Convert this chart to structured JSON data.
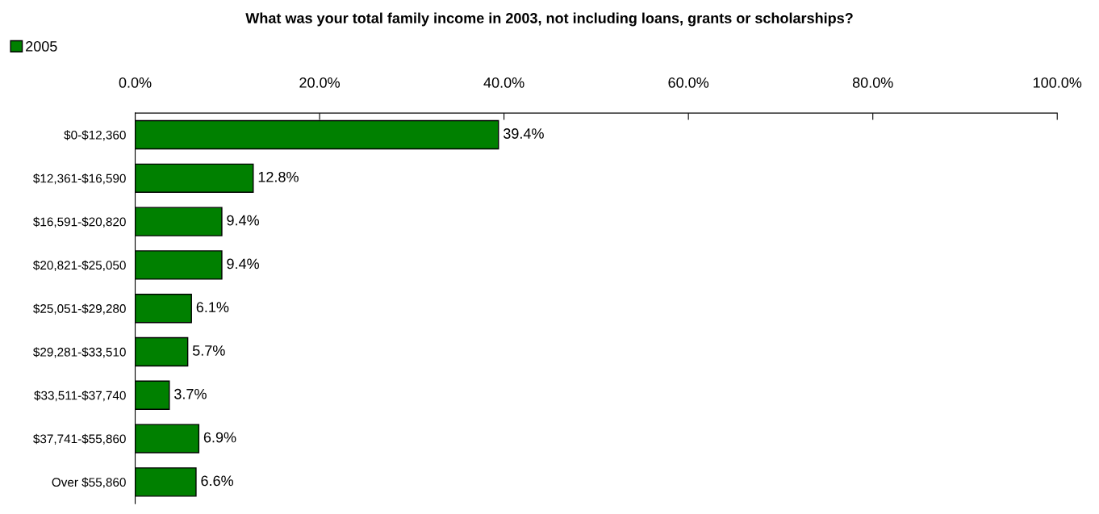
{
  "chart_data": {
    "type": "bar",
    "orientation": "horizontal",
    "title": "What was your total family income in 2003, not including loans, grants or scholarships?",
    "categories": [
      "$0-$12,360",
      "$12,361-$16,590",
      "$16,591-$20,820",
      "$20,821-$25,050",
      "$25,051-$29,280",
      "$29,281-$33,510",
      "$33,511-$37,740",
      "$37,741-$55,860",
      "Over $55,860"
    ],
    "series": [
      {
        "name": "2005",
        "color": "#008000",
        "values": [
          39.4,
          12.8,
          9.4,
          9.4,
          6.1,
          5.7,
          3.7,
          6.9,
          6.6
        ],
        "value_labels": [
          "39.4%",
          "12.8%",
          "9.4%",
          "9.4%",
          "6.1%",
          "5.7%",
          "3.7%",
          "6.9%",
          "6.6%"
        ]
      }
    ],
    "xlim": [
      0,
      100
    ],
    "xticks": [
      {
        "value": 0,
        "label": "0.0%"
      },
      {
        "value": 20,
        "label": "20.0%"
      },
      {
        "value": 40,
        "label": "40.0%"
      },
      {
        "value": 60,
        "label": "60.0%"
      },
      {
        "value": 80,
        "label": "80.0%"
      },
      {
        "value": 100,
        "label": "100.0%"
      }
    ],
    "legend": "top left",
    "grid": false
  }
}
